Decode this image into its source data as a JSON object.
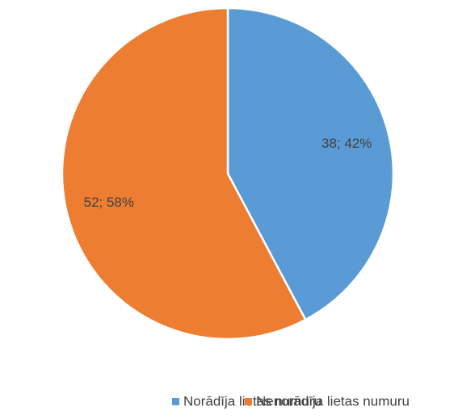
{
  "chart_data": {
    "type": "pie",
    "categories": [
      "Norādīja lietas numuru",
      "Nenorādīja lietas numuru"
    ],
    "values": [
      38,
      52
    ],
    "value_labels": [
      "38; 42%",
      "52; 58%"
    ],
    "colors": [
      "#5b9bd5",
      "#ed7d31"
    ],
    "legend": "bottom"
  }
}
